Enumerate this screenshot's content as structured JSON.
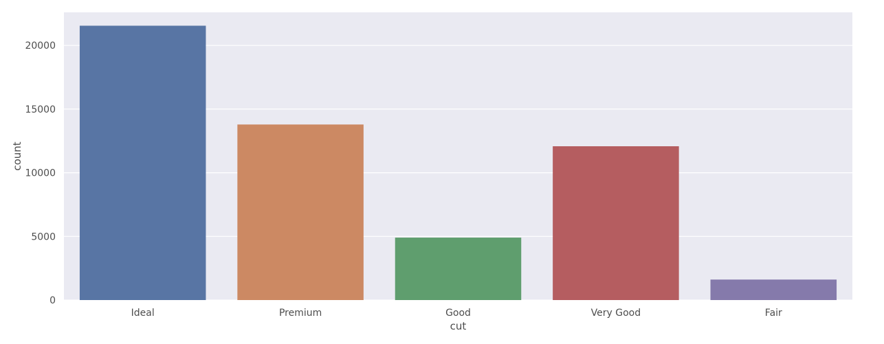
{
  "chart_data": {
    "type": "bar",
    "categories": [
      "Ideal",
      "Premium",
      "Good",
      "Very Good",
      "Fair"
    ],
    "values": [
      21551,
      13791,
      4906,
      12082,
      1610
    ],
    "xlabel": "cut",
    "ylabel": "count",
    "ylim": [
      0,
      22600
    ],
    "yticks": [
      0,
      5000,
      10000,
      15000,
      20000
    ],
    "grid": true,
    "legend": "none",
    "colors": [
      "#5875a4",
      "#cc8963",
      "#5f9e6e",
      "#b55d60",
      "#857aab"
    ],
    "background_color": "#eaeaf2"
  }
}
